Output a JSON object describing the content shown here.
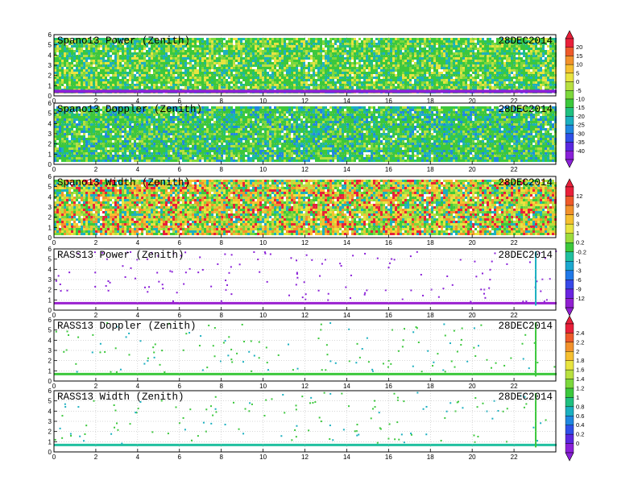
{
  "date_label": "28DEC2014",
  "chart_data": [
    {
      "type": "heatmap",
      "title": "Spano13 Power (Zenith)",
      "date": "28DEC2014",
      "xlim": [
        0,
        24
      ],
      "ylim": [
        0,
        6
      ],
      "xticks": [
        "0",
        "2",
        "4",
        "6",
        "8",
        "10",
        "12",
        "14",
        "16",
        "18",
        "20",
        "22"
      ],
      "yticks": [
        "0",
        "1",
        "2",
        "3",
        "4",
        "5",
        "6"
      ],
      "grid": true,
      "coverage": "dense",
      "colorbar": "cb1"
    },
    {
      "type": "heatmap",
      "title": "Spano13 Doppler (Zenith)",
      "date": "28DEC2014",
      "xlim": [
        0,
        24
      ],
      "ylim": [
        0,
        6
      ],
      "xticks": [
        "0",
        "2",
        "4",
        "6",
        "8",
        "10",
        "12",
        "14",
        "16",
        "18",
        "20",
        "22"
      ],
      "yticks": [
        "0",
        "1",
        "2",
        "3",
        "4",
        "5",
        "6"
      ],
      "grid": true,
      "coverage": "dense",
      "colorbar": "cb1"
    },
    {
      "type": "heatmap",
      "title": "Spano13 Width (Zenith)",
      "date": "28DEC2014",
      "xlim": [
        0,
        24
      ],
      "ylim": [
        0,
        6
      ],
      "xticks": [
        "0",
        "2",
        "4",
        "6",
        "8",
        "10",
        "12",
        "14",
        "16",
        "18",
        "20",
        "22"
      ],
      "yticks": [
        "0",
        "1",
        "2",
        "3",
        "4",
        "5",
        "6"
      ],
      "grid": true,
      "coverage": "dense",
      "colorbar": "cb2"
    },
    {
      "type": "heatmap",
      "title": "RASS13 Power (Zenith)",
      "date": "28DEC2014",
      "xlim": [
        0,
        24
      ],
      "ylim": [
        0,
        6
      ],
      "xticks": [
        "0",
        "2",
        "4",
        "6",
        "8",
        "10",
        "12",
        "14",
        "16",
        "18",
        "20",
        "22"
      ],
      "yticks": [
        "0",
        "1",
        "2",
        "3",
        "4",
        "5",
        "6"
      ],
      "grid": true,
      "coverage": "sparse",
      "colorbar": "cb2"
    },
    {
      "type": "heatmap",
      "title": "RASS13 Doppler (Zenith)",
      "date": "28DEC2014",
      "xlim": [
        0,
        24
      ],
      "ylim": [
        0,
        6
      ],
      "xticks": [
        "0",
        "2",
        "4",
        "6",
        "8",
        "10",
        "12",
        "14",
        "16",
        "18",
        "20",
        "22"
      ],
      "yticks": [
        "0",
        "1",
        "2",
        "3",
        "4",
        "5",
        "6"
      ],
      "grid": true,
      "coverage": "sparse",
      "colorbar": "cb3"
    },
    {
      "type": "heatmap",
      "title": "RASS13 Width (Zenith)",
      "date": "28DEC2014",
      "xlim": [
        0,
        24
      ],
      "ylim": [
        0,
        6
      ],
      "xticks": [
        "0",
        "2",
        "4",
        "6",
        "8",
        "10",
        "12",
        "14",
        "16",
        "18",
        "20",
        "22"
      ],
      "yticks": [
        "0",
        "1",
        "2",
        "3",
        "4",
        "5",
        "6"
      ],
      "grid": true,
      "coverage": "sparse",
      "colorbar": "cb3"
    }
  ],
  "colorbars": {
    "cb1": {
      "labels": [
        "20",
        "15",
        "10",
        "5",
        "0",
        "-5",
        "-10",
        "-15",
        "-20",
        "-25",
        "-30",
        "-35",
        "-40"
      ],
      "colors": [
        "#e8203a",
        "#ee5a2a",
        "#f2922c",
        "#f6c030",
        "#e8e440",
        "#b8e040",
        "#7cd83c",
        "#3cc83c",
        "#20c080",
        "#1cb0c0",
        "#2088e0",
        "#3050e8",
        "#5a28e0",
        "#8a20d8"
      ]
    },
    "cb2": {
      "labels": [
        "12",
        "9",
        "6",
        "3",
        "1",
        "0.2",
        "-0.2",
        "-1",
        "-3",
        "-6",
        "-9",
        "-12"
      ],
      "colors": [
        "#e8203a",
        "#ee5a2a",
        "#f2922c",
        "#f6c030",
        "#e8e440",
        "#9cdc3c",
        "#3cc83c",
        "#20c0a0",
        "#1ca8d0",
        "#2078e8",
        "#3848e8",
        "#6a24e0",
        "#9020d0"
      ]
    },
    "cb3": {
      "labels": [
        "2.4",
        "2.2",
        "2",
        "1.8",
        "1.6",
        "1.4",
        "1.2",
        "1",
        "0.8",
        "0.6",
        "0.4",
        "0.2",
        "0"
      ],
      "colors": [
        "#e8203a",
        "#ee5a2a",
        "#f2922c",
        "#f6c030",
        "#e8e440",
        "#b8e040",
        "#7cd83c",
        "#3cc83c",
        "#20c080",
        "#1cb0c0",
        "#2088e0",
        "#3050e8",
        "#5a28e0",
        "#8a20d8"
      ]
    }
  }
}
